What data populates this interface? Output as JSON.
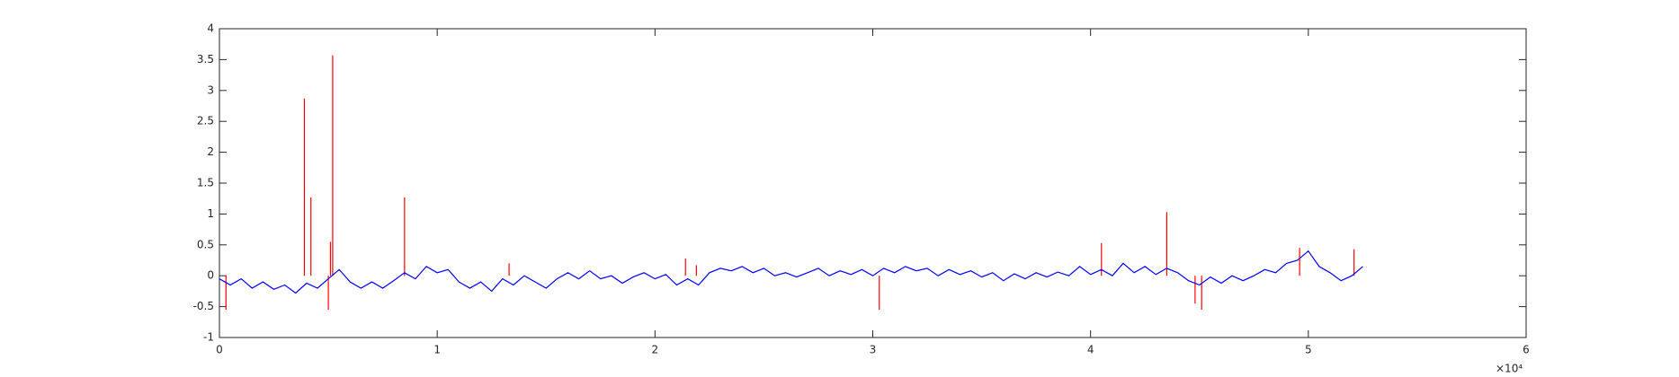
{
  "chart_data": {
    "type": "line",
    "xlim": [
      0,
      60000
    ],
    "ylim": [
      -1,
      4
    ],
    "xticks": [
      {
        "value": 0,
        "label": "0"
      },
      {
        "value": 10000,
        "label": "1"
      },
      {
        "value": 20000,
        "label": "2"
      },
      {
        "value": 30000,
        "label": "3"
      },
      {
        "value": 40000,
        "label": "4"
      },
      {
        "value": 50000,
        "label": "5"
      },
      {
        "value": 60000,
        "label": "6"
      }
    ],
    "yticks": [
      -1,
      -0.5,
      0,
      0.5,
      1,
      1.5,
      2,
      2.5,
      3,
      3.5,
      4
    ],
    "x_exponent_label": "×10⁴",
    "series": [
      {
        "color": "#ff0000",
        "style": "stem",
        "x": [
          300,
          3900,
          4200,
          5000,
          5100,
          5200,
          8500,
          13300,
          21400,
          21900,
          30300,
          40500,
          43500,
          44800,
          45100,
          49600,
          52100
        ],
        "values": [
          -0.55,
          2.87,
          1.27,
          -0.55,
          0.55,
          3.57,
          1.27,
          0.2,
          0.28,
          0.17,
          -0.55,
          0.53,
          1.03,
          -0.45,
          -0.55,
          0.45,
          0.43
        ]
      },
      {
        "color": "#0000ff",
        "style": "line",
        "x": [
          0,
          500,
          1000,
          1500,
          2000,
          2500,
          3000,
          3500,
          4000,
          4500,
          5000,
          5500,
          6000,
          6500,
          7000,
          7500,
          8000,
          8500,
          9000,
          9500,
          10000,
          10500,
          11000,
          11500,
          12000,
          12500,
          13000,
          13500,
          14000,
          14500,
          15000,
          15500,
          16000,
          16500,
          17000,
          17500,
          18000,
          18500,
          19000,
          19500,
          20000,
          20500,
          21000,
          21500,
          22000,
          22500,
          23000,
          23500,
          24000,
          24500,
          25000,
          25500,
          26000,
          26500,
          27000,
          27500,
          28000,
          28500,
          29000,
          29500,
          30000,
          30500,
          31000,
          31500,
          32000,
          32500,
          33000,
          33500,
          34000,
          34500,
          35000,
          35500,
          36000,
          36500,
          37000,
          37500,
          38000,
          38500,
          39000,
          39500,
          40000,
          40500,
          41000,
          41500,
          42000,
          42500,
          43000,
          43500,
          44000,
          44500,
          45000,
          45500,
          46000,
          46500,
          47000,
          47500,
          48000,
          48500,
          49000,
          49500,
          50000,
          50500,
          51000,
          51500,
          52000,
          52500
        ],
        "values": [
          -0.05,
          -0.15,
          -0.05,
          -0.2,
          -0.1,
          -0.22,
          -0.15,
          -0.28,
          -0.12,
          -0.2,
          -0.05,
          0.1,
          -0.1,
          -0.2,
          -0.1,
          -0.2,
          -0.08,
          0.05,
          -0.05,
          0.15,
          0.05,
          0.1,
          -0.1,
          -0.2,
          -0.1,
          -0.25,
          -0.05,
          -0.15,
          0,
          -0.1,
          -0.2,
          -0.05,
          0.05,
          -0.05,
          0.08,
          -0.05,
          0,
          -0.12,
          -0.02,
          0.05,
          -0.05,
          0.02,
          -0.15,
          -0.05,
          -0.15,
          0.05,
          0.12,
          0.08,
          0.15,
          0.05,
          0.12,
          0,
          0.05,
          -0.02,
          0.05,
          0.12,
          0,
          0.08,
          0.02,
          0.1,
          0,
          0.12,
          0.05,
          0.15,
          0.08,
          0.12,
          0,
          0.1,
          0.02,
          0.08,
          -0.02,
          0.05,
          -0.08,
          0.03,
          -0.05,
          0.05,
          -0.02,
          0.06,
          0,
          0.15,
          0.02,
          0.1,
          0,
          0.2,
          0.05,
          0.15,
          0.02,
          0.12,
          0.05,
          -0.08,
          -0.15,
          -0.02,
          -0.12,
          0,
          -0.08,
          0,
          0.1,
          0.05,
          0.2,
          0.25,
          0.4,
          0.15,
          0.05,
          -0.08,
          0,
          0.15
        ]
      }
    ]
  }
}
